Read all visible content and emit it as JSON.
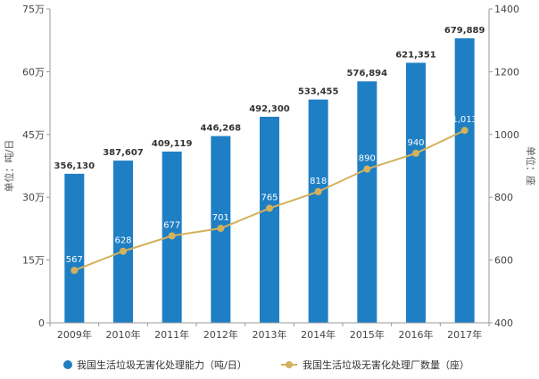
{
  "chart_data": {
    "type": "bar",
    "categories": [
      "2009年",
      "2010年",
      "2011年",
      "2012年",
      "2013年",
      "2014年",
      "2015年",
      "2016年",
      "2017年"
    ],
    "series": [
      {
        "name": "我国生活垃圾无害化处理能力（吨/日）",
        "type": "bar",
        "axis": "left",
        "color": "#1f7fc4",
        "values": [
          356130,
          387607,
          409119,
          446268,
          492300,
          533455,
          576894,
          621351,
          679889
        ],
        "labels": [
          "356,130",
          "387,607",
          "409,119",
          "446,268",
          "492,300",
          "533,455",
          "576,894",
          "621,351",
          "679,889"
        ]
      },
      {
        "name": "我国生活垃圾无害化处理厂数量（座）",
        "type": "line",
        "axis": "right",
        "color": "#d4b15c",
        "values": [
          567,
          628,
          677,
          701,
          765,
          818,
          890,
          940,
          1013
        ],
        "labels": [
          "567",
          "628",
          "677",
          "701",
          "765",
          "818",
          "890",
          "940",
          "1,013"
        ]
      }
    ],
    "ylabel_left": "单位：吨/日",
    "ylabel_right": "单位：座",
    "ylim_left": [
      0,
      750000
    ],
    "yticks_left": [
      0,
      150000,
      300000,
      450000,
      600000,
      750000
    ],
    "ytick_labels_left": [
      "0",
      "15万",
      "30万",
      "45万",
      "60万",
      "75万"
    ],
    "ylim_right": [
      400,
      1400
    ],
    "yticks_right": [
      400,
      600,
      800,
      1000,
      1200,
      1400
    ],
    "ytick_labels_right": [
      "400",
      "600",
      "800",
      "1000",
      "1200",
      "1400"
    ],
    "grid": false,
    "legend_position": "bottom"
  }
}
